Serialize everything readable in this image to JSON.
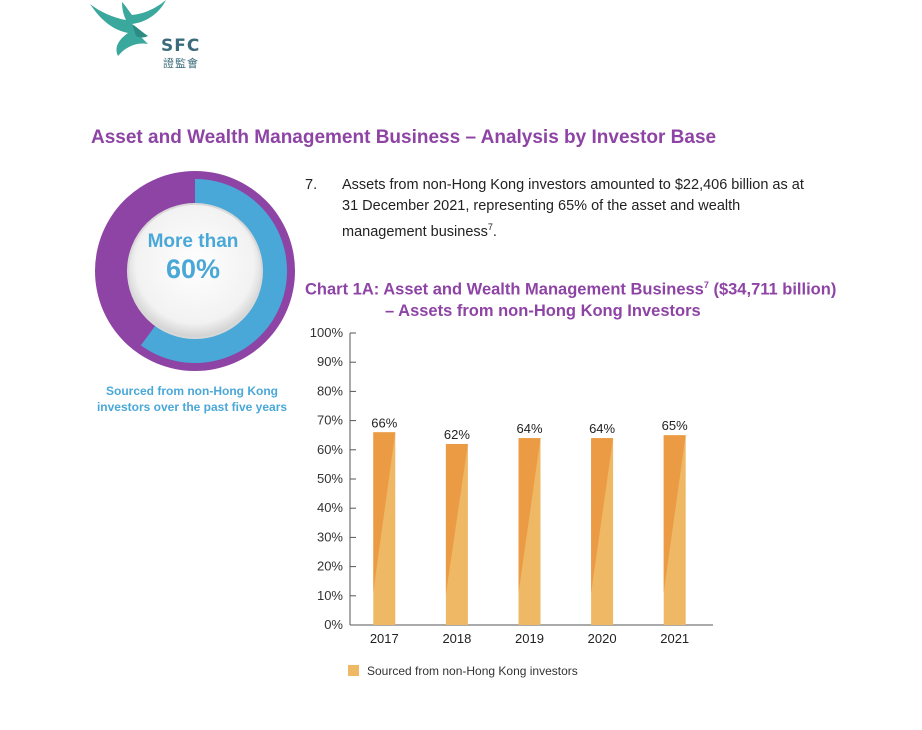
{
  "logo": {
    "text": "SFC",
    "subtext": "證監會"
  },
  "section_title": "Asset and Wealth Management Business – Analysis by Investor Base",
  "highlight": {
    "line1": "More than",
    "line2": "60%",
    "fraction": 0.6,
    "caption_line1": "Sourced from non-Hong Kong",
    "caption_line2": "investors over the past five years"
  },
  "paragraph": {
    "number": "7.",
    "text": "Assets from non-Hong Kong investors amounted to $22,406 billion as at 31 December 2021, representing 65% of the asset and wealth management business",
    "footnote": "7",
    "end": "."
  },
  "chart_title": {
    "line1_prefix": "Chart 1A: Asset and Wealth Management Business",
    "footnote": "7",
    "line1_suffix": " ($34,711 billion)",
    "line2": "– Assets from non-Hong Kong Investors"
  },
  "colors": {
    "purple": "#8e44a5",
    "blue": "#4aa8d8",
    "bar": "#efb865",
    "bar_accent": "#ec9b45",
    "teal": "#3aa89c"
  },
  "chart_data": {
    "type": "bar",
    "categories": [
      "2017",
      "2018",
      "2019",
      "2020",
      "2021"
    ],
    "series": [
      {
        "name": "Sourced from non-Hong Kong investors",
        "values": [
          66,
          62,
          64,
          64,
          65
        ]
      }
    ],
    "data_labels": [
      "66%",
      "62%",
      "64%",
      "64%",
      "65%"
    ],
    "ylim": [
      0,
      100
    ],
    "yticks": [
      "0%",
      "10%",
      "20%",
      "30%",
      "40%",
      "50%",
      "60%",
      "70%",
      "80%",
      "90%",
      "100%"
    ],
    "legend_position": "bottom-left",
    "grid": false
  },
  "legend": {
    "label": "Sourced from non-Hong Kong investors"
  }
}
